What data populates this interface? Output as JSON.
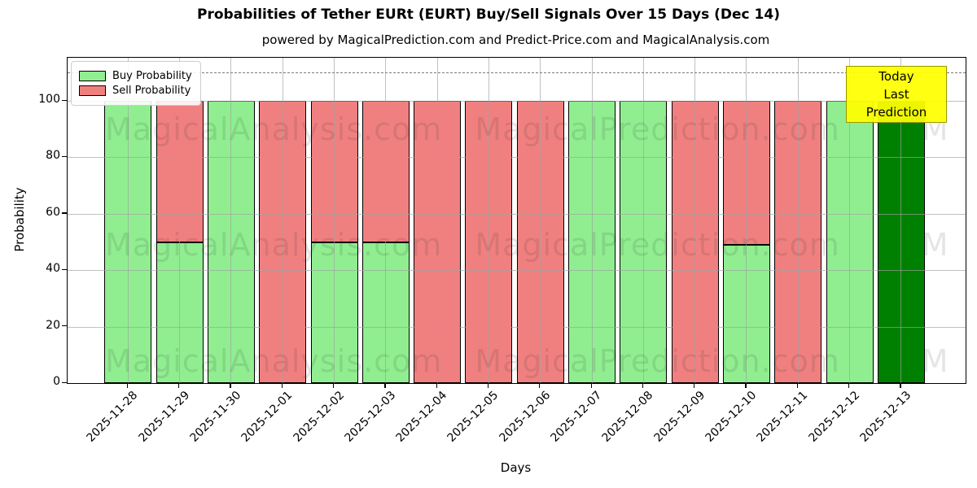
{
  "title": "Probabilities of Tether EURt (EURT) Buy/Sell Signals Over 15 Days (Dec 14)",
  "subtitle": "powered by MagicalPrediction.com and Predict-Price.com and MagicalAnalysis.com",
  "legend": {
    "buy_label": "Buy Probability",
    "sell_label": "Sell Probability"
  },
  "annotation_box": {
    "line1": "Today",
    "line2": "Last Prediction"
  },
  "watermarks": {
    "left": "MagicalAnalysis.com",
    "right": "MagicalPrediction.com",
    "clipped": "M"
  },
  "colors": {
    "buy": "#90EE90",
    "sell": "#F08080",
    "today": "#008000",
    "annotation_bg": "#FFFF00",
    "annotation_border": "#999900",
    "grid": "#B0B0B0",
    "dashed_line": "#7A7A7A",
    "bar_edge": "#000000"
  },
  "chart_data": {
    "type": "bar",
    "stacked": true,
    "title": "Probabilities of Tether EURt (EURT) Buy/Sell Signals Over 15 Days (Dec 14)",
    "xlabel": "Days",
    "ylabel": "Probability",
    "categories": [
      "2025-11-28",
      "2025-11-29",
      "2025-11-30",
      "2025-12-01",
      "2025-12-02",
      "2025-12-03",
      "2025-12-04",
      "2025-12-05",
      "2025-12-06",
      "2025-12-07",
      "2025-12-08",
      "2025-12-09",
      "2025-12-10",
      "2025-12-11",
      "2025-12-12",
      "2025-12-13"
    ],
    "series": [
      {
        "name": "Buy Probability",
        "color": "#90EE90",
        "values": [
          100,
          50,
          100,
          0,
          50,
          50,
          0,
          0,
          0,
          100,
          100,
          0,
          49,
          0,
          100,
          100
        ]
      },
      {
        "name": "Sell Probability",
        "color": "#F08080",
        "values": [
          0,
          50,
          0,
          100,
          50,
          50,
          100,
          100,
          100,
          0,
          0,
          100,
          51,
          100,
          0,
          0
        ]
      }
    ],
    "today_bar": {
      "index": 15,
      "color": "#008000",
      "label": "Today Last Prediction",
      "value": 100
    },
    "yticks": [
      0,
      20,
      40,
      60,
      80,
      100
    ],
    "ylim": [
      0,
      115.3
    ],
    "dashed_line_y": 110,
    "grid": true,
    "legend_position": "upper left"
  }
}
